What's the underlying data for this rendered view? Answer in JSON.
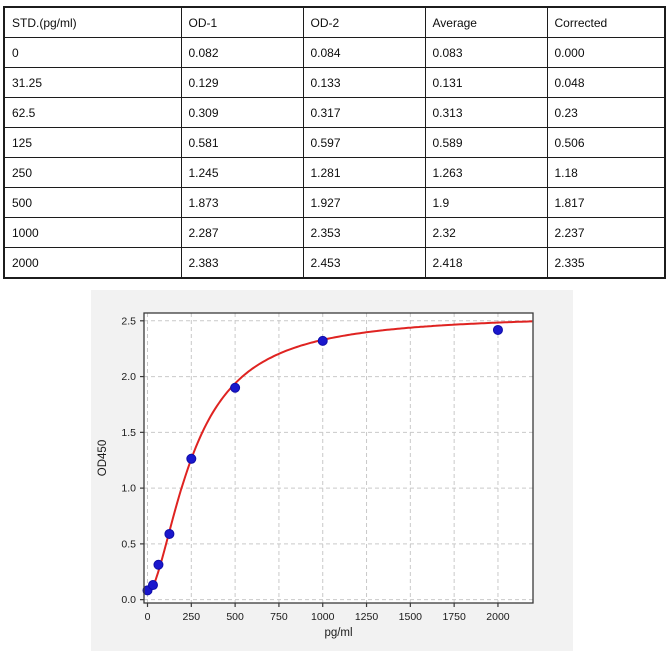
{
  "table": {
    "columns": [
      "STD.(pg/ml)",
      "OD-1",
      "OD-2",
      "Average",
      "Corrected"
    ],
    "rows": [
      {
        "cells": [
          "0",
          "0.082",
          "0.084",
          "0.083",
          "0.000"
        ]
      },
      {
        "cells": [
          "31.25",
          "0.129",
          "0.133",
          "0.131",
          "0.048"
        ]
      },
      {
        "cells": [
          "62.5",
          "0.309",
          "0.317",
          "0.313",
          "0.23"
        ]
      },
      {
        "cells": [
          "125",
          "0.581",
          "0.597",
          "0.589",
          "0.506"
        ]
      },
      {
        "cells": [
          "250",
          "1.245",
          "1.281",
          "1.263",
          "1.18"
        ]
      },
      {
        "cells": [
          "500",
          "1.873",
          "1.927",
          "1.9",
          "1.817"
        ]
      },
      {
        "cells": [
          "1000",
          "2.287",
          "2.353",
          "2.32",
          "2.237"
        ]
      },
      {
        "cells": [
          "2000",
          "2.383",
          "2.453",
          "2.418",
          "2.335"
        ]
      }
    ]
  },
  "chart_data": {
    "type": "scatter",
    "title": "",
    "xlabel": "pg/ml",
    "ylabel": "OD450",
    "x": [
      0,
      31.25,
      62.5,
      125,
      250,
      500,
      1000,
      2000
    ],
    "y": [
      0.083,
      0.131,
      0.313,
      0.589,
      1.263,
      1.9,
      2.32,
      2.418
    ],
    "x_ticks": [
      0,
      250,
      500,
      750,
      1000,
      1250,
      1500,
      1750,
      2000
    ],
    "y_ticks": [
      0.0,
      0.5,
      1.0,
      1.5,
      2.0,
      2.5
    ],
    "xlim": [
      -20,
      2200
    ],
    "ylim": [
      -0.03,
      2.57
    ],
    "grid": true,
    "legend_position": "none",
    "fit_curve": {
      "model": "4PL",
      "a": 0.05,
      "b": 1.7,
      "c": 260,
      "d": 2.56
    },
    "colors": {
      "point": "#1a17cd",
      "point_edge": "#0f0da8",
      "line": "#df2321",
      "grid": "#c9c9c9",
      "spine": "#3a3a3a",
      "tick_text": "#1a1a1a",
      "figure_bg": "#f2f2f2",
      "plot_bg": "#ffffff"
    }
  }
}
